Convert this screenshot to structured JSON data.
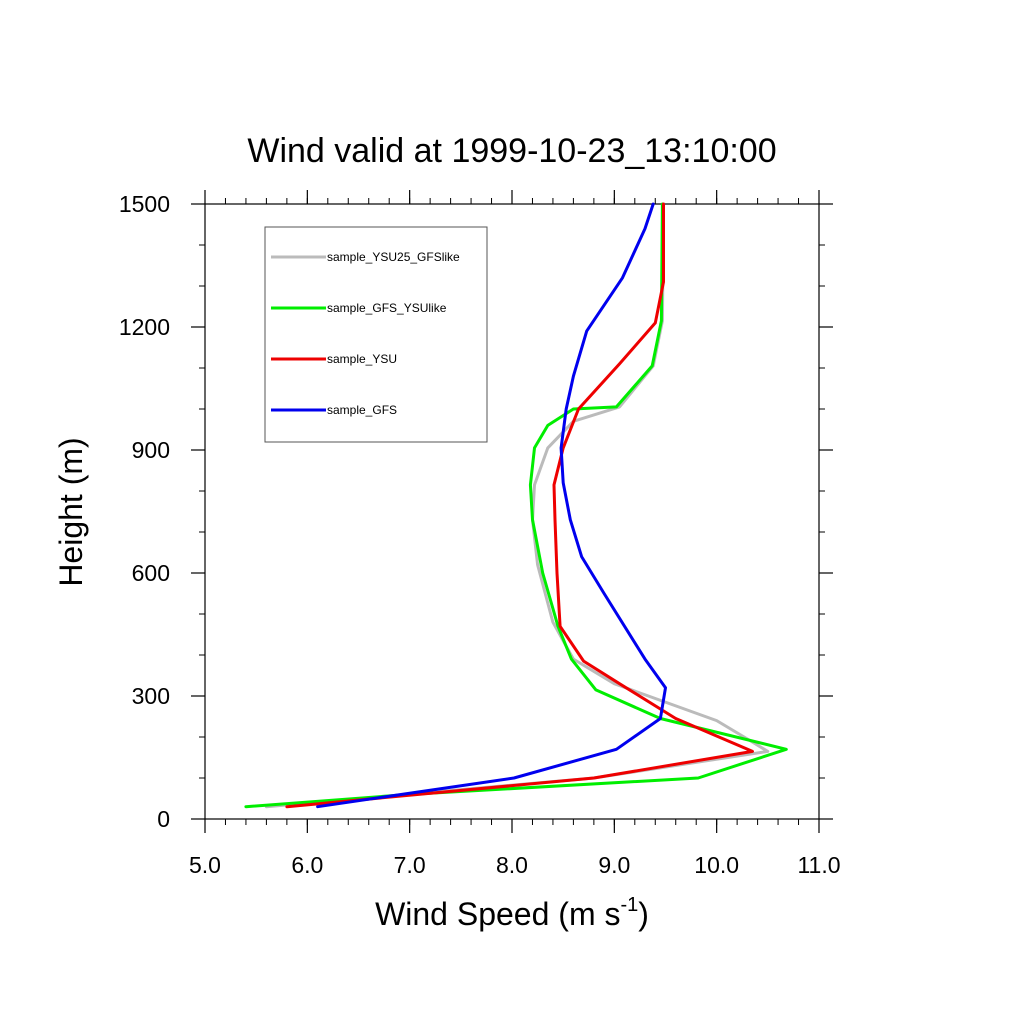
{
  "chart_data": {
    "type": "line",
    "title": "Wind valid at 1999-10-23_13:10:00",
    "xlabel": "Wind Speed (m s",
    "xlabel_sup": "-1",
    "xlabel_end": ")",
    "ylabel": "Height (m)",
    "xlim": [
      5.0,
      11.0
    ],
    "ylim": [
      0,
      1500
    ],
    "x_ticks": [
      5.0,
      6.0,
      7.0,
      8.0,
      9.0,
      10.0,
      11.0
    ],
    "x_tick_labels": [
      "5.0",
      "6.0",
      "7.0",
      "8.0",
      "9.0",
      "10.0",
      "11.0"
    ],
    "y_ticks": [
      0,
      300,
      600,
      900,
      1200,
      1500
    ],
    "y_tick_labels": [
      "0",
      "300",
      "600",
      "900",
      "1200",
      "1500"
    ],
    "grid": false,
    "legend_position": "top-left",
    "series": [
      {
        "name": "sample_YSU25_GFSlike",
        "color": "#bbbbbb",
        "x": [
          5.6,
          8.8,
          10.5,
          10.3,
          10.0,
          9.0,
          8.6,
          8.4,
          8.25,
          8.2,
          8.22,
          8.35,
          8.6,
          9.05,
          9.38,
          9.47,
          9.48
        ],
        "y": [
          30,
          100,
          165,
          195,
          240,
          330,
          390,
          480,
          620,
          730,
          815,
          905,
          970,
          1005,
          1105,
          1215,
          1500
        ]
      },
      {
        "name": "sample_GFS_YSUlike",
        "color": "#00ee00",
        "x": [
          5.4,
          7.0,
          9.82,
          10.68,
          9.45,
          8.82,
          8.58,
          8.45,
          8.3,
          8.2,
          8.18,
          8.22,
          8.35,
          8.6,
          9.02,
          9.37,
          9.46,
          9.47
        ],
        "y": [
          30,
          60,
          100,
          170,
          245,
          315,
          390,
          470,
          600,
          730,
          815,
          905,
          960,
          1000,
          1005,
          1105,
          1215,
          1500
        ]
      },
      {
        "name": "sample_YSU",
        "color": "#ee0000",
        "x": [
          5.8,
          8.8,
          10.35,
          9.6,
          9.05,
          8.7,
          8.47,
          8.44,
          8.42,
          8.41,
          8.5,
          8.65,
          9.05,
          9.4,
          9.48,
          9.48
        ],
        "y": [
          30,
          100,
          165,
          245,
          330,
          385,
          470,
          600,
          730,
          815,
          905,
          1000,
          1110,
          1210,
          1310,
          1500
        ]
      },
      {
        "name": "sample_GFS",
        "color": "#0000ee",
        "x": [
          6.1,
          8.02,
          9.02,
          9.45,
          9.5,
          9.3,
          8.9,
          8.68,
          8.57,
          8.5,
          8.48,
          8.53,
          8.6,
          8.73,
          9.08,
          9.3,
          9.38
        ],
        "y": [
          30,
          100,
          170,
          245,
          320,
          390,
          550,
          640,
          730,
          820,
          905,
          1000,
          1080,
          1190,
          1320,
          1440,
          1500
        ]
      }
    ]
  }
}
